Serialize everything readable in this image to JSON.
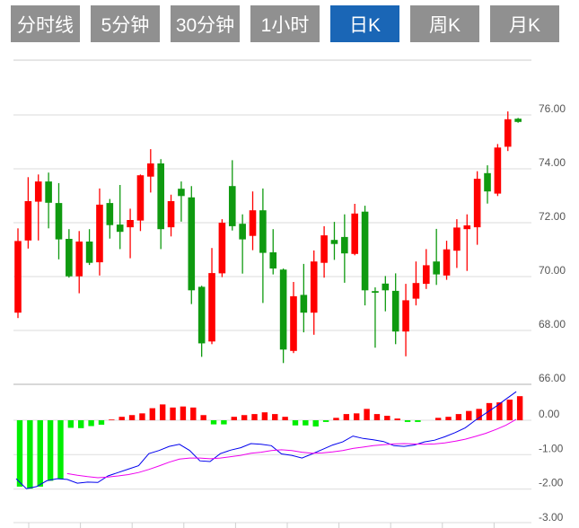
{
  "tabs": [
    {
      "label": "分时线",
      "active": false
    },
    {
      "label": "5分钟",
      "active": false
    },
    {
      "label": "30分钟",
      "active": false
    },
    {
      "label": "1小时",
      "active": false
    },
    {
      "label": "日K",
      "active": true
    },
    {
      "label": "周K",
      "active": false
    },
    {
      "label": "月K",
      "active": false
    }
  ],
  "colors": {
    "up": "#ff0000",
    "down": "#0f9a10",
    "macd_up": "#ff0000",
    "macd_down": "#00ee00",
    "dif": "#0000ee",
    "dea": "#ee00ee",
    "active_tab": "#1a66b6",
    "tab": "#909090"
  },
  "chart_data": [
    {
      "type": "candlestick",
      "title": "日K",
      "ylim": [
        66,
        76
      ],
      "y_ticks": [
        "76.00",
        "74.00",
        "72.00",
        "70.00",
        "68.00",
        "66.00"
      ],
      "y_tick_values": [
        76,
        74,
        72,
        70,
        68,
        66
      ],
      "grid": true,
      "ohlc": [
        [
          68.66,
          71.79,
          68.46,
          71.32
        ],
        [
          71.34,
          73.69,
          71.04,
          72.8
        ],
        [
          72.78,
          73.79,
          71.34,
          73.53
        ],
        [
          73.53,
          73.86,
          71.79,
          72.74
        ],
        [
          72.73,
          73.47,
          70.64,
          71.38
        ],
        [
          71.4,
          71.76,
          69.96,
          70.01
        ],
        [
          70.01,
          71.69,
          69.38,
          71.3
        ],
        [
          71.3,
          71.76,
          70.43,
          70.51
        ],
        [
          70.53,
          73.27,
          70.04,
          72.67
        ],
        [
          72.73,
          72.88,
          71.41,
          71.91
        ],
        [
          71.93,
          73.4,
          71.02,
          71.66
        ],
        [
          71.83,
          72.52,
          70.68,
          72.1
        ],
        [
          72.08,
          73.79,
          71.69,
          73.76
        ],
        [
          73.71,
          74.73,
          73.12,
          74.2
        ],
        [
          74.2,
          74.36,
          71.02,
          71.76
        ],
        [
          71.83,
          73.04,
          71.49,
          72.8
        ],
        [
          73.26,
          73.53,
          72.04,
          72.99
        ],
        [
          72.94,
          73.36,
          68.98,
          69.49
        ],
        [
          69.62,
          69.66,
          67.02,
          67.52
        ],
        [
          67.59,
          71.06,
          67.49,
          70.13
        ],
        [
          70.12,
          72.13,
          69.98,
          72.0
        ],
        [
          73.36,
          74.32,
          71.71,
          71.87
        ],
        [
          71.96,
          72.31,
          70.11,
          71.38
        ],
        [
          71.51,
          73.16,
          70.98,
          72.46
        ],
        [
          72.46,
          73.27,
          69.02,
          70.88
        ],
        [
          70.9,
          71.76,
          70.08,
          70.3
        ],
        [
          70.26,
          70.3,
          66.79,
          67.29
        ],
        [
          67.24,
          69.8,
          67.16,
          69.27
        ],
        [
          69.32,
          70.47,
          67.93,
          68.66
        ],
        [
          68.66,
          70.97,
          67.84,
          70.56
        ],
        [
          70.51,
          71.87,
          69.96,
          71.53
        ],
        [
          71.36,
          72.03,
          70.62,
          71.21
        ],
        [
          71.47,
          72.31,
          69.77,
          70.86
        ],
        [
          70.84,
          72.7,
          70.79,
          72.34
        ],
        [
          72.41,
          72.63,
          68.93,
          69.49
        ],
        [
          69.46,
          69.6,
          67.36,
          69.4
        ],
        [
          69.74,
          70.02,
          68.71,
          69.49
        ],
        [
          69.47,
          70.12,
          67.49,
          67.96
        ],
        [
          67.96,
          69.73,
          67.04,
          69.12
        ],
        [
          69.18,
          70.56,
          68.93,
          69.76
        ],
        [
          69.73,
          71.02,
          69.54,
          70.42
        ],
        [
          70.56,
          71.77,
          69.69,
          70.08
        ],
        [
          70.04,
          71.33,
          69.88,
          71.01
        ],
        [
          70.96,
          72.13,
          70.32,
          71.82
        ],
        [
          71.76,
          72.31,
          70.21,
          71.9
        ],
        [
          71.83,
          73.91,
          71.18,
          73.63
        ],
        [
          73.84,
          74.13,
          72.71,
          73.16
        ],
        [
          73.08,
          74.92,
          72.99,
          74.79
        ],
        [
          74.82,
          76.13,
          74.66,
          75.84
        ],
        [
          75.86,
          75.89,
          75.71,
          75.74
        ]
      ]
    },
    {
      "type": "macd",
      "ylim": [
        -3,
        0.9
      ],
      "y_ticks": [
        "0.00",
        "-1.00",
        "-2.00",
        "-3.00"
      ],
      "y_tick_values": [
        0,
        -1,
        -2,
        -3
      ],
      "histogram": [
        -1.93,
        -1.99,
        -1.93,
        -1.76,
        -1.7,
        -0.22,
        -0.23,
        -0.17,
        -0.13,
        0.02,
        0.1,
        0.15,
        0.2,
        0.35,
        0.46,
        0.37,
        0.4,
        0.37,
        0.15,
        -0.12,
        -0.12,
        0.1,
        0.15,
        0.18,
        0.23,
        0.18,
        0.1,
        -0.15,
        -0.15,
        -0.18,
        -0.05,
        0.07,
        0.18,
        0.2,
        0.33,
        0.18,
        0.13,
        0.05,
        -0.05,
        -0.05,
        0,
        0.07,
        0.1,
        0.18,
        0.27,
        0.33,
        0.5,
        0.52,
        0.6,
        0.7
      ],
      "dif": [
        -1.7,
        -1.99,
        -1.93,
        -1.76,
        -1.7,
        -1.72,
        -1.83,
        -1.8,
        -1.81,
        -1.62,
        -1.52,
        -1.42,
        -1.32,
        -0.97,
        -0.88,
        -0.76,
        -0.7,
        -0.88,
        -1.18,
        -1.2,
        -0.97,
        -0.87,
        -0.8,
        -0.68,
        -0.7,
        -0.74,
        -0.98,
        -1.02,
        -1.1,
        -0.98,
        -0.85,
        -0.72,
        -0.63,
        -0.46,
        -0.53,
        -0.57,
        -0.62,
        -0.74,
        -0.76,
        -0.72,
        -0.63,
        -0.58,
        -0.48,
        -0.36,
        -0.22,
        0.0,
        0.2,
        0.4,
        0.62,
        0.83
      ],
      "dea": [
        null,
        null,
        null,
        null,
        null,
        -1.55,
        -1.6,
        -1.64,
        -1.67,
        -1.65,
        -1.62,
        -1.58,
        -1.52,
        -1.43,
        -1.33,
        -1.22,
        -1.13,
        -1.1,
        -1.1,
        -1.12,
        -1.1,
        -1.06,
        -1.02,
        -0.96,
        -0.93,
        -0.88,
        -0.86,
        -0.88,
        -0.93,
        -0.96,
        -0.95,
        -0.92,
        -0.88,
        -0.82,
        -0.78,
        -0.74,
        -0.71,
        -0.69,
        -0.68,
        -0.69,
        -0.7,
        -0.69,
        -0.66,
        -0.61,
        -0.55,
        -0.47,
        -0.38,
        -0.27,
        -0.14,
        0.03
      ]
    }
  ]
}
